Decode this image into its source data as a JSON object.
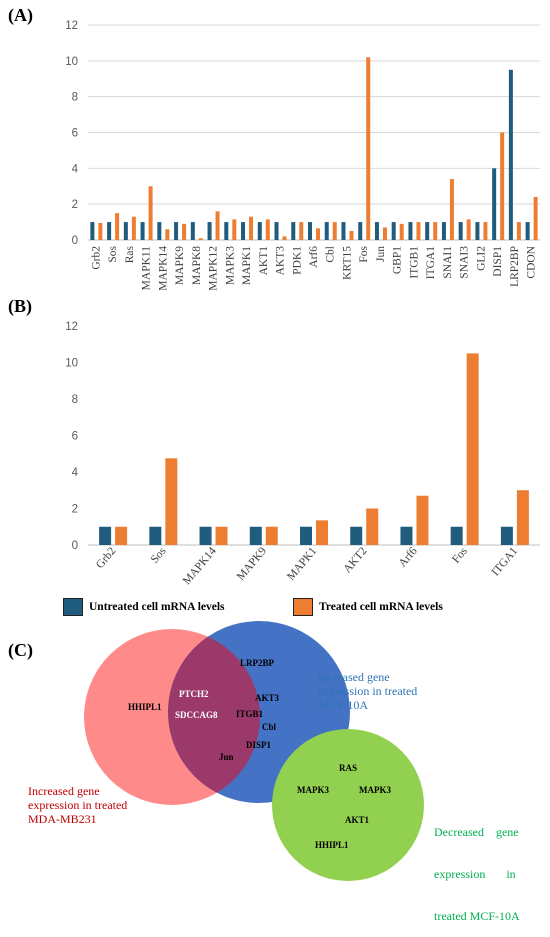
{
  "panels": {
    "a": "(A)",
    "b": "(B)",
    "c": "(C)"
  },
  "colors": {
    "untreated": "#1F5C7E",
    "treated": "#ED7D31",
    "venn_red": "#FF8A8A",
    "venn_blue": "#4472C4",
    "venn_overlap": "#9B3A6A",
    "venn_green": "#92D050",
    "caption_red": "#C00000",
    "caption_blue": "#2E75B6",
    "caption_green": "#00B050"
  },
  "legend": {
    "untreated": "Untreated cell mRNA levels",
    "treated": "Treated cell mRNA levels"
  },
  "chart_data": [
    {
      "type": "bar",
      "panel": "(A)",
      "categories": [
        "Grb2",
        "Sos",
        "Ras",
        "MAPK11",
        "MAPK14",
        "MAPK9",
        "MAPK8",
        "MAPK12",
        "MAPK3",
        "MAPK1",
        "AKT1",
        "AKT3",
        "PDK1",
        "Arf6",
        "Cbl",
        "KRT15",
        "Fos",
        "Jun",
        "GBP1",
        "ITGB1",
        "ITGA1",
        "SNAI1",
        "SNAI3",
        "GLI2",
        "DISP1",
        "LRP2BP",
        "CDON"
      ],
      "series": [
        {
          "name": "Untreated cell mRNA levels",
          "values": [
            1,
            1,
            1,
            1,
            1,
            1,
            1,
            1,
            1,
            1,
            1,
            1,
            1,
            1,
            1,
            1,
            1,
            1,
            1,
            1,
            1,
            1,
            1,
            1,
            4,
            9.5,
            1
          ]
        },
        {
          "name": "Treated cell mRNA levels",
          "values": [
            0.95,
            1.5,
            1.3,
            3.0,
            0.6,
            0.9,
            0.1,
            1.6,
            1.15,
            1.3,
            1.15,
            0.2,
            1.0,
            0.65,
            1.0,
            0.5,
            10.2,
            0.7,
            0.9,
            1.0,
            1.0,
            3.4,
            1.15,
            1.0,
            6.0,
            1.0,
            2.4
          ]
        }
      ],
      "yticks": [
        0,
        2,
        4,
        6,
        8,
        10,
        12
      ],
      "ylim": [
        0,
        12
      ],
      "grid": true
    },
    {
      "type": "bar",
      "panel": "(B)",
      "categories": [
        "Grb2",
        "Sos",
        "MAPK14",
        "MAPK9",
        "MAPK1",
        "AKT2",
        "Arf6",
        "Fos",
        "ITGA1"
      ],
      "series": [
        {
          "name": "Untreated cell mRNA levels",
          "values": [
            1,
            1,
            1,
            1,
            1,
            1,
            1,
            1,
            1
          ]
        },
        {
          "name": "Treated cell mRNA levels",
          "values": [
            1,
            4.75,
            1,
            1,
            1.35,
            2.0,
            2.7,
            10.5,
            3.0
          ]
        }
      ],
      "yticks": [
        0,
        2,
        4,
        6,
        8,
        10,
        12
      ],
      "ylim": [
        0,
        12
      ],
      "grid": false,
      "legend": "bottom"
    }
  ],
  "venn": {
    "red_only": [
      "HHIPL1"
    ],
    "red_blue_overlap": [
      "PTCH2",
      "SDCCAG8"
    ],
    "blue_only": [
      "LRP2BP",
      "AKT3",
      "ITGB1",
      "Cbl",
      "DISP1",
      "Jun"
    ],
    "green": [
      "RAS",
      "MAPK3",
      "MAPK3",
      "AKT1",
      "HHIPL1"
    ],
    "captions": {
      "red": [
        "Increased gene",
        "expression in treated",
        "MDA-MB231"
      ],
      "blue": [
        "Increased gene",
        "expression in treated",
        "MCF-10A"
      ],
      "green": [
        "Decreased    gene",
        "expression       in",
        "treated MCF-10A"
      ]
    }
  }
}
